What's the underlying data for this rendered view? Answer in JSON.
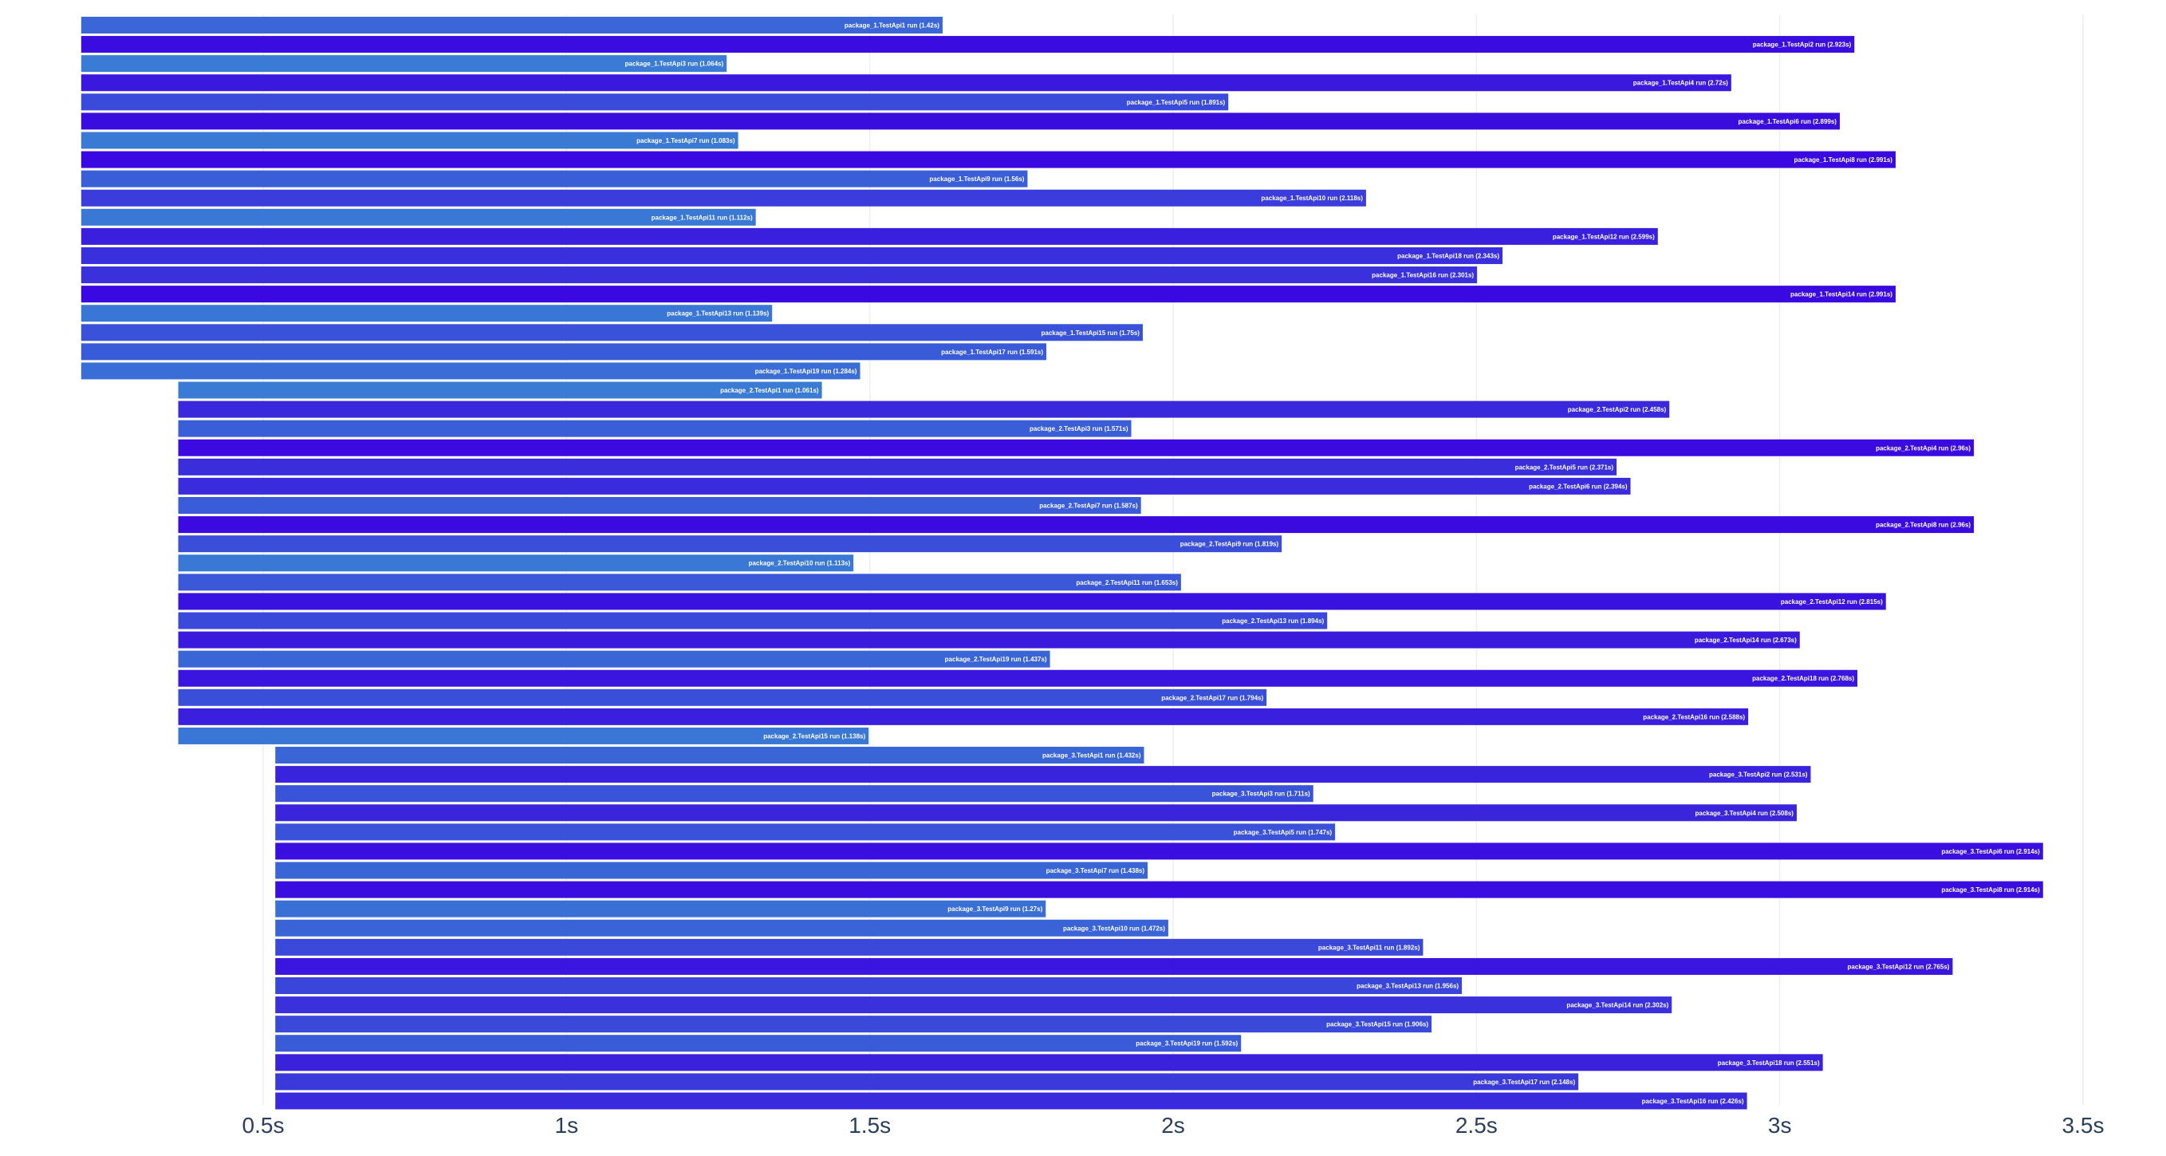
{
  "chart_data": {
    "type": "bar",
    "orientation": "horizontal",
    "title": "",
    "xlabel": "",
    "ylabel": "",
    "xlim": [
      0.2,
      3.55
    ],
    "x_ticks": [
      0.5,
      1,
      1.5,
      2,
      2.5,
      3,
      3.5
    ],
    "x_tick_labels": [
      "0.5s",
      "1s",
      "1.5s",
      "2s",
      "2.5s",
      "3s",
      "3.5s"
    ],
    "grid": "vertical",
    "legend": "none",
    "color_scale": {
      "min_color": "#3a7bd5",
      "max_color": "#3a08e0"
    },
    "bars": [
      {
        "label": "package_1.TestApi1 run (1.42s)",
        "start": 0.2,
        "duration": 1.42
      },
      {
        "label": "package_1.TestApi2 run (2.923s)",
        "start": 0.2,
        "duration": 2.923
      },
      {
        "label": "package_1.TestApi3 run (1.064s)",
        "start": 0.2,
        "duration": 1.064
      },
      {
        "label": "package_1.TestApi4 run (2.72s)",
        "start": 0.2,
        "duration": 2.72
      },
      {
        "label": "package_1.TestApi5 run (1.891s)",
        "start": 0.2,
        "duration": 1.891
      },
      {
        "label": "package_1.TestApi6 run (2.899s)",
        "start": 0.2,
        "duration": 2.899
      },
      {
        "label": "package_1.TestApi7 run (1.083s)",
        "start": 0.2,
        "duration": 1.083
      },
      {
        "label": "package_1.TestApi8 run (2.991s)",
        "start": 0.2,
        "duration": 2.991
      },
      {
        "label": "package_1.TestApi9 run (1.56s)",
        "start": 0.2,
        "duration": 1.56
      },
      {
        "label": "package_1.TestApi10 run (2.118s)",
        "start": 0.2,
        "duration": 2.118
      },
      {
        "label": "package_1.TestApi11 run (1.112s)",
        "start": 0.2,
        "duration": 1.112
      },
      {
        "label": "package_1.TestApi12 run (2.599s)",
        "start": 0.2,
        "duration": 2.599
      },
      {
        "label": "package_1.TestApi18 run (2.343s)",
        "start": 0.2,
        "duration": 2.343
      },
      {
        "label": "package_1.TestApi16 run (2.301s)",
        "start": 0.2,
        "duration": 2.301
      },
      {
        "label": "package_1.TestApi14 run (2.991s)",
        "start": 0.2,
        "duration": 2.991
      },
      {
        "label": "package_1.TestApi13 run (1.139s)",
        "start": 0.2,
        "duration": 1.139
      },
      {
        "label": "package_1.TestApi15 run (1.75s)",
        "start": 0.2,
        "duration": 1.75
      },
      {
        "label": "package_1.TestApi17 run (1.591s)",
        "start": 0.2,
        "duration": 1.591
      },
      {
        "label": "package_1.TestApi19 run (1.284s)",
        "start": 0.2,
        "duration": 1.284
      },
      {
        "label": "package_2.TestApi1 run (1.061s)",
        "start": 0.36,
        "duration": 1.061
      },
      {
        "label": "package_2.TestApi2 run (2.458s)",
        "start": 0.36,
        "duration": 2.458
      },
      {
        "label": "package_2.TestApi3 run (1.571s)",
        "start": 0.36,
        "duration": 1.571
      },
      {
        "label": "package_2.TestApi4 run (2.96s)",
        "start": 0.36,
        "duration": 2.96
      },
      {
        "label": "package_2.TestApi5 run (2.371s)",
        "start": 0.36,
        "duration": 2.371
      },
      {
        "label": "package_2.TestApi6 run (2.394s)",
        "start": 0.36,
        "duration": 2.394
      },
      {
        "label": "package_2.TestApi7 run (1.587s)",
        "start": 0.36,
        "duration": 1.587
      },
      {
        "label": "package_2.TestApi8 run (2.96s)",
        "start": 0.36,
        "duration": 2.96
      },
      {
        "label": "package_2.TestApi9 run (1.819s)",
        "start": 0.36,
        "duration": 1.819
      },
      {
        "label": "package_2.TestApi10 run (1.113s)",
        "start": 0.36,
        "duration": 1.113
      },
      {
        "label": "package_2.TestApi11 run (1.653s)",
        "start": 0.36,
        "duration": 1.653
      },
      {
        "label": "package_2.TestApi12 run (2.815s)",
        "start": 0.36,
        "duration": 2.815
      },
      {
        "label": "package_2.TestApi13 run (1.894s)",
        "start": 0.36,
        "duration": 1.894
      },
      {
        "label": "package_2.TestApi14 run (2.673s)",
        "start": 0.36,
        "duration": 2.673
      },
      {
        "label": "package_2.TestApi19 run (1.437s)",
        "start": 0.36,
        "duration": 1.437
      },
      {
        "label": "package_2.TestApi18 run (2.768s)",
        "start": 0.36,
        "duration": 2.768
      },
      {
        "label": "package_2.TestApi17 run (1.794s)",
        "start": 0.36,
        "duration": 1.794
      },
      {
        "label": "package_2.TestApi16 run (2.588s)",
        "start": 0.36,
        "duration": 2.588
      },
      {
        "label": "package_2.TestApi15 run (1.138s)",
        "start": 0.36,
        "duration": 1.138
      },
      {
        "label": "package_3.TestApi1 run (1.432s)",
        "start": 0.52,
        "duration": 1.432
      },
      {
        "label": "package_3.TestApi2 run (2.531s)",
        "start": 0.52,
        "duration": 2.531
      },
      {
        "label": "package_3.TestApi3 run (1.711s)",
        "start": 0.52,
        "duration": 1.711
      },
      {
        "label": "package_3.TestApi4 run (2.508s)",
        "start": 0.52,
        "duration": 2.508
      },
      {
        "label": "package_3.TestApi5 run (1.747s)",
        "start": 0.52,
        "duration": 1.747
      },
      {
        "label": "package_3.TestApi6 run (2.914s)",
        "start": 0.52,
        "duration": 2.914
      },
      {
        "label": "package_3.TestApi7 run (1.438s)",
        "start": 0.52,
        "duration": 1.438
      },
      {
        "label": "package_3.TestApi8 run (2.914s)",
        "start": 0.52,
        "duration": 2.914
      },
      {
        "label": "package_3.TestApi9 run (1.27s)",
        "start": 0.52,
        "duration": 1.27
      },
      {
        "label": "package_3.TestApi10 run (1.472s)",
        "start": 0.52,
        "duration": 1.472
      },
      {
        "label": "package_3.TestApi11 run (1.892s)",
        "start": 0.52,
        "duration": 1.892
      },
      {
        "label": "package_3.TestApi12 run (2.765s)",
        "start": 0.52,
        "duration": 2.765
      },
      {
        "label": "package_3.TestApi13 run (1.956s)",
        "start": 0.52,
        "duration": 1.956
      },
      {
        "label": "package_3.TestApi14 run (2.302s)",
        "start": 0.52,
        "duration": 2.302
      },
      {
        "label": "package_3.TestApi15 run (1.906s)",
        "start": 0.52,
        "duration": 1.906
      },
      {
        "label": "package_3.TestApi19 run (1.592s)",
        "start": 0.52,
        "duration": 1.592
      },
      {
        "label": "package_3.TestApi18 run (2.551s)",
        "start": 0.52,
        "duration": 2.551
      },
      {
        "label": "package_3.TestApi17 run (2.148s)",
        "start": 0.52,
        "duration": 2.148
      },
      {
        "label": "package_3.TestApi16 run (2.426s)",
        "start": 0.52,
        "duration": 2.426
      }
    ]
  }
}
